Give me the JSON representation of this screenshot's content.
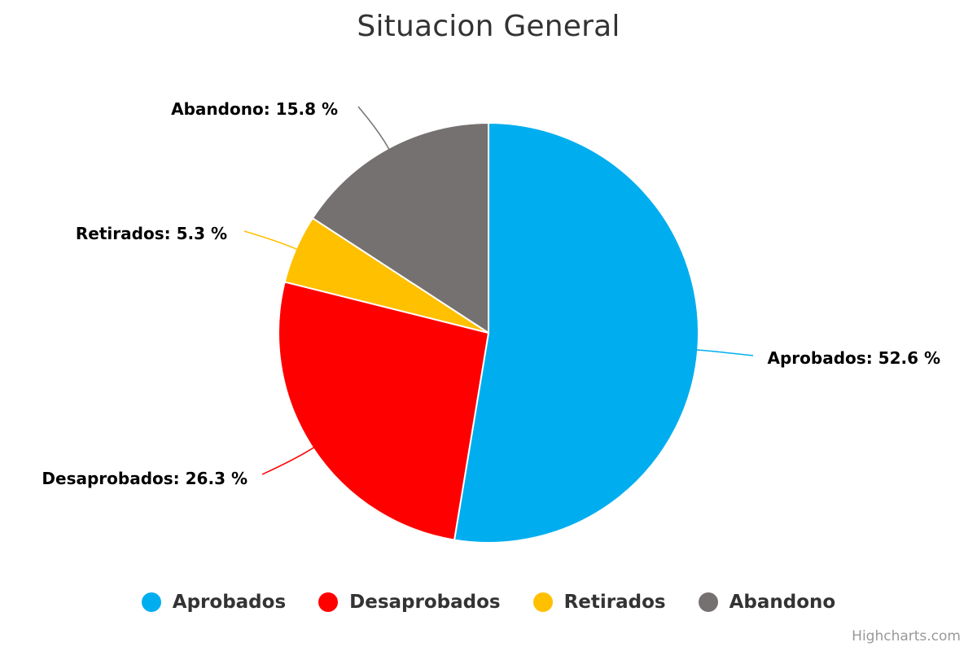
{
  "chart_data": {
    "type": "pie",
    "title": "Situacion General",
    "slices": [
      {
        "name": "Aprobados",
        "value": 52.6,
        "color": "#00AEEF",
        "label": "Aprobados: 52.6 %"
      },
      {
        "name": "Desaprobados",
        "value": 26.3,
        "color": "#FF0000",
        "label": "Desaprobados: 26.3 %"
      },
      {
        "name": "Retirados",
        "value": 5.3,
        "color": "#FFC000",
        "label": "Retirados: 5.3 %"
      },
      {
        "name": "Abandono",
        "value": 15.8,
        "color": "#767171",
        "label": "Abandono: 15.8 %"
      }
    ],
    "legend_position": "bottom-center",
    "start_angle": "top",
    "direction": "clockwise"
  },
  "credits": "Highcharts.com"
}
